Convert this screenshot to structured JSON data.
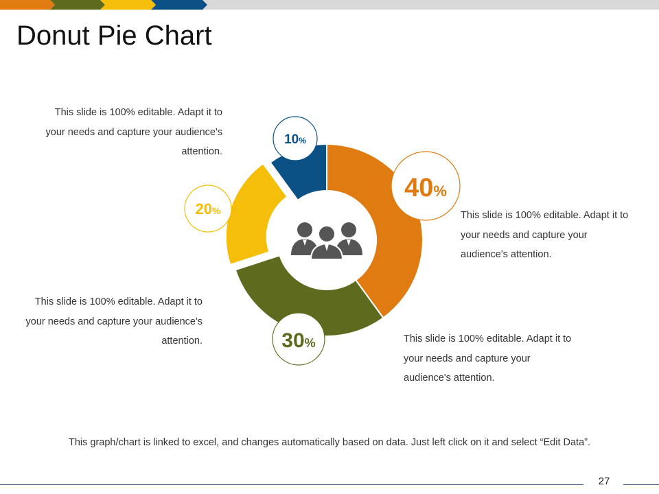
{
  "slide": {
    "title": "Donut Pie Chart",
    "footnote": "This graph/chart is linked to excel, and changes automatically  based on data. Just left click on it and select “Edit Data”.",
    "page_number": "27"
  },
  "top_bar": {
    "colors": [
      "#E07B12",
      "#5E6B1E",
      "#F5BE0A",
      "#0B5185",
      "#D9D9D9"
    ]
  },
  "descriptions": {
    "blue": "This slide is 100% editable. Adapt it to your needs and capture your audience's attention.",
    "orange": "This slide is 100% editable. Adapt it to your needs and capture your audience's attention.",
    "yellow": "This slide is 100% editable. Adapt it to your needs and capture your audience's attention.",
    "green": "This slide is 100% editable. Adapt it to your needs and capture your audience's attention."
  },
  "center_icon": "team-people-icon",
  "chart_data": {
    "type": "pie",
    "variant": "donut",
    "slices": [
      {
        "value": 40,
        "label_number": "40",
        "label_unit": "%",
        "color": "#E07B12"
      },
      {
        "value": 30,
        "label_number": "30",
        "label_unit": "%",
        "color": "#5E6B1E"
      },
      {
        "value": 20,
        "label_number": "20",
        "label_unit": "%",
        "color": "#F5BE0A"
      },
      {
        "value": 10,
        "label_number": "10",
        "label_unit": "%",
        "color": "#0B5185"
      }
    ]
  }
}
